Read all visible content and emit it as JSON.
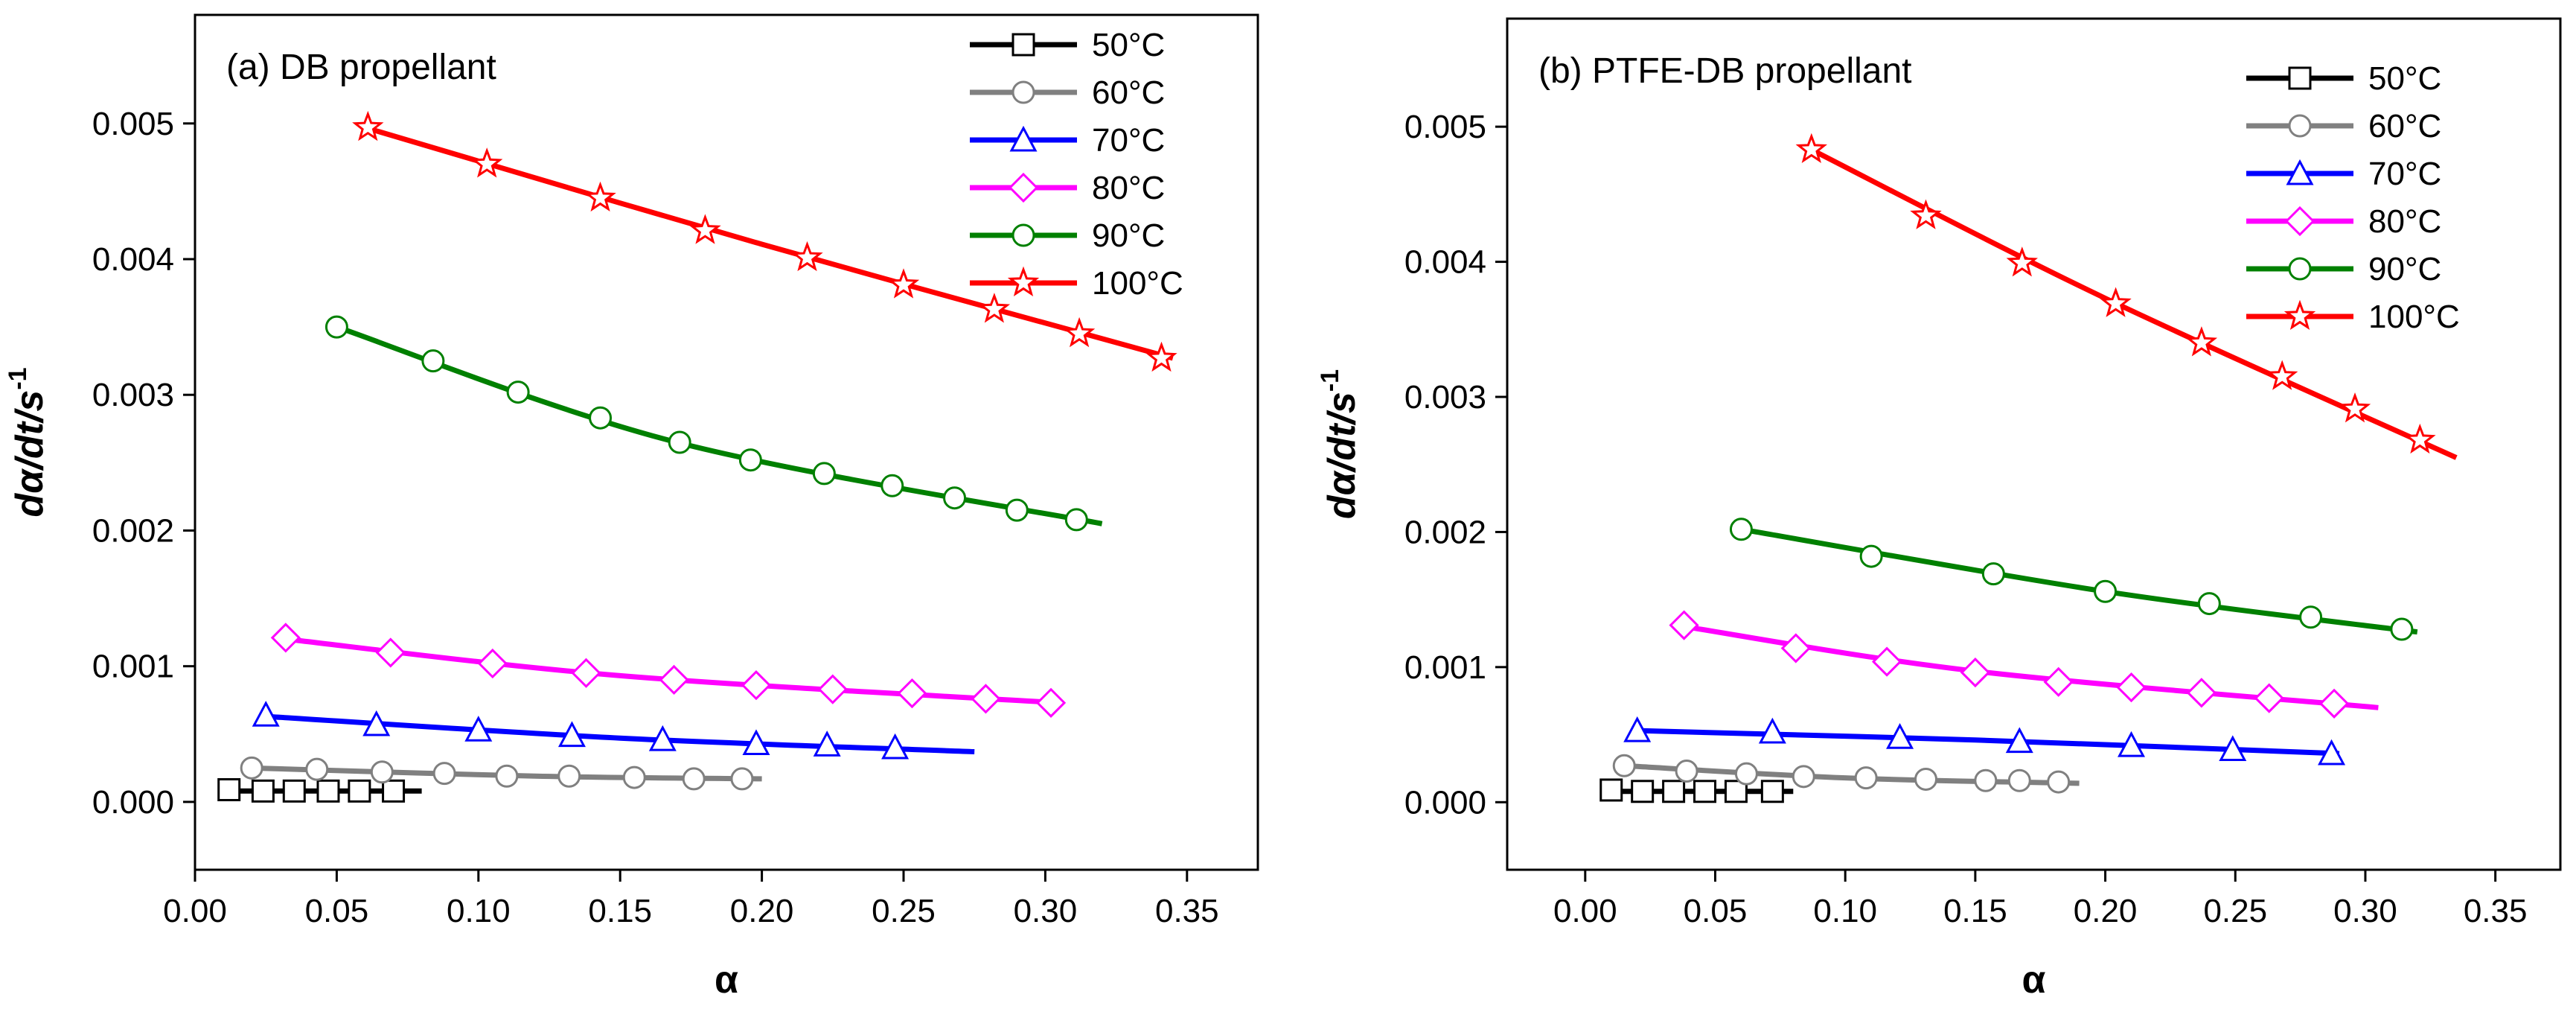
{
  "chart_data": [
    {
      "type": "line",
      "title": "(a) DB propellant",
      "xlabel": "α",
      "ylabel": "dα/dt/s",
      "ylabel_superscript": "-1",
      "xlim": [
        0.0,
        0.375
      ],
      "ylim": [
        -0.0005,
        0.0058
      ],
      "xticks": [
        "0.00",
        "0.05",
        "0.10",
        "0.15",
        "0.20",
        "0.25",
        "0.30",
        "0.35"
      ],
      "yticks": [
        "0.000",
        "0.001",
        "0.002",
        "0.003",
        "0.004",
        "0.005"
      ],
      "legend_position": "top-right",
      "series": [
        {
          "name": "50°C",
          "color": "#000000",
          "marker": "square",
          "line": [
            [
              0.01,
              8e-05
            ],
            [
              0.08,
              8e-05
            ]
          ],
          "markers": [
            [
              0.012,
              9e-05
            ],
            [
              0.024,
              8e-05
            ],
            [
              0.035,
              8e-05
            ],
            [
              0.047,
              8e-05
            ],
            [
              0.058,
              8e-05
            ],
            [
              0.07,
              8e-05
            ]
          ]
        },
        {
          "name": "60°C",
          "color": "#808080",
          "marker": "circle",
          "line": [
            [
              0.02,
              0.00025
            ],
            [
              0.12,
              0.00019
            ],
            [
              0.2,
              0.00017
            ]
          ],
          "markers": [
            [
              0.02,
              0.00025
            ],
            [
              0.043,
              0.00024
            ],
            [
              0.066,
              0.00022
            ],
            [
              0.088,
              0.00021
            ],
            [
              0.11,
              0.00019
            ],
            [
              0.132,
              0.00019
            ],
            [
              0.155,
              0.00018
            ],
            [
              0.176,
              0.00017
            ],
            [
              0.193,
              0.00017
            ]
          ]
        },
        {
          "name": "70°C",
          "color": "#0000ff",
          "marker": "triangle",
          "line": [
            [
              0.025,
              0.00063
            ],
            [
              0.15,
              0.00047
            ],
            [
              0.275,
              0.00037
            ]
          ],
          "markers": [
            [
              0.025,
              0.00064
            ],
            [
              0.064,
              0.00057
            ],
            [
              0.1,
              0.00053
            ],
            [
              0.133,
              0.00049
            ],
            [
              0.165,
              0.00046
            ],
            [
              0.198,
              0.00043
            ],
            [
              0.223,
              0.00042
            ],
            [
              0.247,
              0.0004
            ]
          ]
        },
        {
          "name": "80°C",
          "color": "#ff00ff",
          "marker": "diamond",
          "line": [
            [
              0.032,
              0.0012
            ],
            [
              0.15,
              0.00093
            ],
            [
              0.305,
              0.00073
            ]
          ],
          "markers": [
            [
              0.032,
              0.00121
            ],
            [
              0.069,
              0.0011
            ],
            [
              0.105,
              0.00102
            ],
            [
              0.138,
              0.00095
            ],
            [
              0.169,
              0.0009
            ],
            [
              0.198,
              0.00086
            ],
            [
              0.225,
              0.00083
            ],
            [
              0.253,
              0.0008
            ],
            [
              0.279,
              0.00076
            ],
            [
              0.302,
              0.00073
            ]
          ]
        },
        {
          "name": "90°C",
          "color": "#008000",
          "marker": "circle",
          "line": [
            [
              0.05,
              0.0035
            ],
            [
              0.17,
              0.00265
            ],
            [
              0.32,
              0.00205
            ]
          ],
          "markers": [
            [
              0.05,
              0.0035
            ],
            [
              0.084,
              0.00325
            ],
            [
              0.114,
              0.00302
            ],
            [
              0.143,
              0.00283
            ],
            [
              0.171,
              0.00265
            ],
            [
              0.196,
              0.00252
            ],
            [
              0.222,
              0.00242
            ],
            [
              0.246,
              0.00233
            ],
            [
              0.268,
              0.00224
            ],
            [
              0.29,
              0.00215
            ],
            [
              0.311,
              0.00208
            ]
          ]
        },
        {
          "name": "100°C",
          "color": "#ff0000",
          "marker": "star",
          "line": [
            [
              0.06,
              0.00497
            ],
            [
              0.2,
              0.00411
            ],
            [
              0.345,
              0.00327
            ]
          ],
          "markers": [
            [
              0.061,
              0.00497
            ],
            [
              0.103,
              0.0047
            ],
            [
              0.143,
              0.00445
            ],
            [
              0.18,
              0.00421
            ],
            [
              0.216,
              0.00401
            ],
            [
              0.25,
              0.00381
            ],
            [
              0.282,
              0.00363
            ],
            [
              0.312,
              0.00345
            ],
            [
              0.341,
              0.00327
            ]
          ]
        }
      ]
    },
    {
      "type": "line",
      "title": "(b) PTFE-DB propellant",
      "xlabel": "α",
      "ylabel": "dα/dt/s",
      "ylabel_superscript": "-1",
      "xlim": [
        -0.03,
        0.375
      ],
      "ylim": [
        -0.0005,
        0.0058
      ],
      "xticks": [
        "0.00",
        "0.05",
        "0.10",
        "0.15",
        "0.20",
        "0.25",
        "0.30",
        "0.35"
      ],
      "yticks": [
        "0.000",
        "0.001",
        "0.002",
        "0.003",
        "0.004",
        "0.005"
      ],
      "legend_position": "top-right",
      "series": [
        {
          "name": "50°C",
          "color": "#000000",
          "marker": "square",
          "line": [
            [
              0.01,
              8e-05
            ],
            [
              0.08,
              8e-05
            ]
          ],
          "markers": [
            [
              0.01,
              9e-05
            ],
            [
              0.022,
              8e-05
            ],
            [
              0.034,
              8e-05
            ],
            [
              0.046,
              8e-05
            ],
            [
              0.058,
              8e-05
            ],
            [
              0.072,
              8e-05
            ]
          ]
        },
        {
          "name": "60°C",
          "color": "#808080",
          "marker": "circle",
          "line": [
            [
              0.015,
              0.00027
            ],
            [
              0.1,
              0.00018
            ],
            [
              0.19,
              0.00014
            ]
          ],
          "markers": [
            [
              0.015,
              0.00027
            ],
            [
              0.039,
              0.00023
            ],
            [
              0.062,
              0.00021
            ],
            [
              0.084,
              0.00019
            ],
            [
              0.108,
              0.00018
            ],
            [
              0.131,
              0.00017
            ],
            [
              0.154,
              0.00016
            ],
            [
              0.167,
              0.00016
            ],
            [
              0.182,
              0.00015
            ]
          ]
        },
        {
          "name": "70°C",
          "color": "#0000ff",
          "marker": "triangle",
          "line": [
            [
              0.02,
              0.00053
            ],
            [
              0.15,
              0.00046
            ],
            [
              0.29,
              0.00036
            ]
          ],
          "markers": [
            [
              0.02,
              0.00053
            ],
            [
              0.072,
              0.00052
            ],
            [
              0.121,
              0.00048
            ],
            [
              0.167,
              0.00045
            ],
            [
              0.21,
              0.00042
            ],
            [
              0.249,
              0.00039
            ],
            [
              0.287,
              0.00036
            ]
          ]
        },
        {
          "name": "80°C",
          "color": "#ff00ff",
          "marker": "diamond",
          "line": [
            [
              0.038,
              0.0013
            ],
            [
              0.15,
              0.00097
            ],
            [
              0.305,
              0.0007
            ]
          ],
          "markers": [
            [
              0.038,
              0.00131
            ],
            [
              0.081,
              0.00114
            ],
            [
              0.116,
              0.00104
            ],
            [
              0.15,
              0.00096
            ],
            [
              0.182,
              0.00089
            ],
            [
              0.21,
              0.00085
            ],
            [
              0.237,
              0.00081
            ],
            [
              0.263,
              0.00077
            ],
            [
              0.288,
              0.00073
            ]
          ]
        },
        {
          "name": "90°C",
          "color": "#008000",
          "marker": "circle",
          "line": [
            [
              0.06,
              0.00202
            ],
            [
              0.2,
              0.00156
            ],
            [
              0.32,
              0.00126
            ]
          ],
          "markers": [
            [
              0.06,
              0.00202
            ],
            [
              0.11,
              0.00182
            ],
            [
              0.157,
              0.00169
            ],
            [
              0.2,
              0.00156
            ],
            [
              0.24,
              0.00147
            ],
            [
              0.279,
              0.00137
            ],
            [
              0.314,
              0.00128
            ]
          ]
        },
        {
          "name": "100°C",
          "color": "#ff0000",
          "marker": "star",
          "line": [
            [
              0.087,
              0.00483
            ],
            [
              0.2,
              0.00373
            ],
            [
              0.335,
              0.00255
            ]
          ],
          "markers": [
            [
              0.087,
              0.00483
            ],
            [
              0.131,
              0.00434
            ],
            [
              0.168,
              0.00399
            ],
            [
              0.204,
              0.00369
            ],
            [
              0.237,
              0.0034
            ],
            [
              0.268,
              0.00315
            ],
            [
              0.296,
              0.00291
            ],
            [
              0.321,
              0.00268
            ]
          ]
        }
      ]
    }
  ]
}
